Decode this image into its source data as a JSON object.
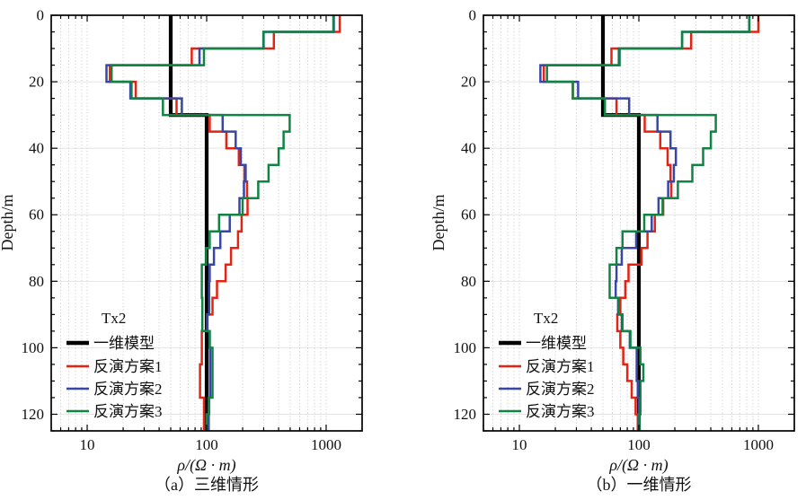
{
  "legend": {
    "title": "Tx2",
    "items": [
      {
        "key": "model",
        "label": "一维模型",
        "color": "#000000"
      },
      {
        "key": "plan1",
        "label": "反演方案1",
        "color": "#e32313"
      },
      {
        "key": "plan2",
        "label": "反演方案2",
        "color": "#3847a3"
      },
      {
        "key": "plan3",
        "label": "反演方案3",
        "color": "#108442"
      }
    ]
  },
  "chart_data": [
    {
      "type": "line",
      "subtype": "stepped-depth-profile",
      "caption": "（a）三维情形",
      "xlabel": "ρ/(Ω · m)",
      "ylabel": "Depth/m",
      "xscale": "log",
      "xlim": [
        5,
        2000
      ],
      "ylim": [
        0,
        125
      ],
      "y_inverted": true,
      "grid": true,
      "legend_position": "lower-left-inside",
      "legend_title": "Tx2",
      "x_major_ticks": [
        10,
        100,
        1000
      ],
      "y_major_ticks": [
        0,
        20,
        40,
        60,
        80,
        100,
        120
      ],
      "y_minor_step": 5,
      "layer_depth_edges": [
        0,
        5,
        10,
        15,
        20,
        25,
        30,
        35,
        40,
        45,
        50,
        55,
        60,
        65,
        70,
        75,
        80,
        85,
        90,
        95,
        100,
        105,
        110,
        115,
        120,
        125
      ],
      "series": [
        {
          "key": "model",
          "name": "一维模型",
          "color": "#000000",
          "width": 4.2,
          "values": [
            50,
            50,
            50,
            50,
            50,
            50,
            100,
            100,
            100,
            100,
            100,
            100,
            100,
            100,
            100,
            100,
            100,
            100,
            100,
            100,
            100,
            100,
            100,
            100,
            100
          ]
        },
        {
          "key": "plan1",
          "name": "反演方案1",
          "color": "#e32313",
          "width": 2.5,
          "values": [
            1300,
            365,
            75,
            15.5,
            25.5,
            56,
            106,
            146,
            186,
            207,
            218,
            220,
            196,
            183,
            160,
            144,
            122,
            112,
            101,
            91,
            91,
            88,
            88,
            95,
            95
          ]
        },
        {
          "key": "plan2",
          "name": "反演方案2",
          "color": "#3847a3",
          "width": 2.5,
          "values": [
            1160,
            300,
            87,
            14.5,
            23,
            62,
            136,
            175,
            193,
            212,
            205,
            188,
            156,
            130,
            115,
            106,
            105,
            105,
            101,
            106,
            107,
            107,
            107,
            104,
            104
          ]
        },
        {
          "key": "plan3",
          "name": "反演方案3",
          "color": "#108442",
          "width": 2.5,
          "values": [
            1150,
            298,
            95,
            16,
            23.5,
            43,
            495,
            440,
            400,
            330,
            270,
            200,
            127,
            106,
            99,
            91,
            91,
            92,
            92,
            106,
            112,
            112,
            112,
            105,
            100
          ]
        }
      ]
    },
    {
      "type": "line",
      "subtype": "stepped-depth-profile",
      "caption": "（b）一维情形",
      "xlabel": "ρ/(Ω · m)",
      "ylabel": "Depth/m",
      "xscale": "log",
      "xlim": [
        5,
        2000
      ],
      "ylim": [
        0,
        125
      ],
      "y_inverted": true,
      "grid": true,
      "legend_position": "lower-left-inside",
      "legend_title": "Tx2",
      "x_major_ticks": [
        10,
        100,
        1000
      ],
      "y_major_ticks": [
        0,
        20,
        40,
        60,
        80,
        100,
        120
      ],
      "y_minor_step": 5,
      "layer_depth_edges": [
        0,
        5,
        10,
        15,
        20,
        25,
        30,
        35,
        40,
        45,
        50,
        55,
        60,
        65,
        70,
        75,
        80,
        85,
        90,
        95,
        100,
        105,
        110,
        115,
        120,
        125
      ],
      "series": [
        {
          "key": "model",
          "name": "一维模型",
          "color": "#000000",
          "width": 4.2,
          "values": [
            50,
            50,
            50,
            50,
            50,
            50,
            100,
            100,
            100,
            100,
            100,
            100,
            100,
            100,
            100,
            100,
            100,
            100,
            100,
            100,
            100,
            100,
            100,
            100,
            100
          ]
        },
        {
          "key": "plan1",
          "name": "反演方案1",
          "color": "#e32313",
          "width": 2.5,
          "values": [
            1000,
            274,
            59,
            16,
            28,
            65,
            112,
            151,
            174,
            184,
            187,
            160,
            136,
            118,
            105,
            82,
            77,
            70,
            66,
            70,
            74,
            80,
            87,
            94,
            98
          ]
        },
        {
          "key": "plan2",
          "name": "反演方案2",
          "color": "#3847a3",
          "width": 2.5,
          "values": [
            840,
            230,
            68,
            15,
            31,
            83,
            143,
            184,
            204,
            196,
            176,
            146,
            128,
            95,
            72,
            65,
            64,
            67,
            72,
            84,
            96,
            96,
            98,
            100,
            100
          ]
        },
        {
          "key": "plan3",
          "name": "反演方案3",
          "color": "#108442",
          "width": 2.5,
          "values": [
            840,
            230,
            69,
            17,
            28,
            52,
            440,
            400,
            345,
            280,
            212,
            158,
            111,
            73,
            65,
            57,
            57,
            68,
            73,
            85,
            103,
            109,
            103,
            103,
            101
          ]
        }
      ]
    }
  ]
}
